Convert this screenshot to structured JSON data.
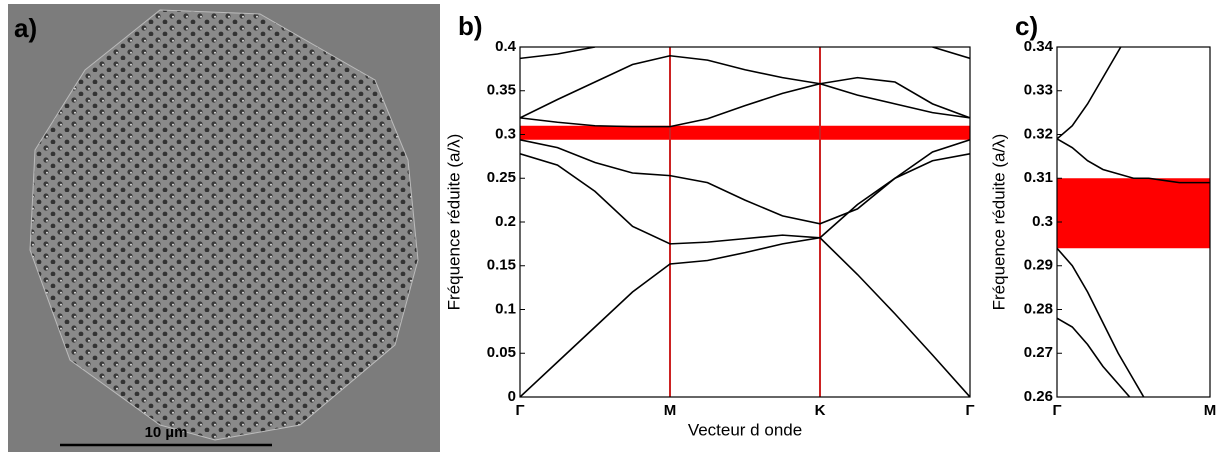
{
  "image": {
    "label": "a)",
    "scale_bar": "10 µm"
  },
  "chart_data": [
    {
      "type": "line",
      "panel_label": "b)",
      "xlabel": "Vecteur d onde",
      "ylabel": "Fréquence réduite (a/λ)",
      "xlim": [
        0,
        3
      ],
      "ylim": [
        0,
        0.4
      ],
      "xticks": [
        {
          "value": 0,
          "label": "Γ"
        },
        {
          "value": 1,
          "label": "M"
        },
        {
          "value": 2,
          "label": "K"
        },
        {
          "value": 3,
          "label": "Γ"
        }
      ],
      "yticks": [
        0,
        0.05,
        0.1,
        0.15,
        0.2,
        0.25,
        0.3,
        0.35,
        0.4
      ],
      "tick_line_color": "#cc2222",
      "gap": [
        0.294,
        0.31
      ],
      "gap_color": "#ff0000",
      "x": [
        0,
        0.25,
        0.5,
        0.75,
        1,
        1.25,
        1.5,
        1.75,
        2,
        2.25,
        2.5,
        2.75,
        3
      ],
      "series": [
        {
          "color": "#000000",
          "values": [
            0,
            0.04,
            0.08,
            0.12,
            0.152,
            0.156,
            0.165,
            0.175,
            0.182,
            0.14,
            0.095,
            0.048,
            0
          ]
        },
        {
          "color": "#000000",
          "values": [
            0.278,
            0.265,
            0.235,
            0.195,
            0.175,
            0.177,
            0.181,
            0.185,
            0.182,
            0.22,
            0.25,
            0.27,
            0.278
          ]
        },
        {
          "color": "#000000",
          "values": [
            0.294,
            0.285,
            0.268,
            0.256,
            0.253,
            0.245,
            0.225,
            0.207,
            0.198,
            0.215,
            0.25,
            0.28,
            0.294
          ]
        },
        {
          "color": "#000000",
          "values": [
            0.319,
            0.314,
            0.31,
            0.309,
            0.309,
            0.318,
            0.333,
            0.347,
            0.358,
            0.345,
            0.335,
            0.325,
            0.319
          ]
        },
        {
          "color": "#000000",
          "values": [
            0.319,
            0.34,
            0.36,
            0.38,
            0.39,
            0.385,
            0.374,
            0.365,
            0.358,
            0.365,
            0.36,
            0.335,
            0.319
          ]
        },
        {
          "color": "#000000",
          "values": [
            0.387,
            0.392,
            0.4,
            null,
            null,
            null,
            null,
            null,
            null,
            null,
            null,
            0.4,
            0.387
          ]
        }
      ]
    },
    {
      "type": "line",
      "panel_label": "c)",
      "ylabel": "Fréquence réduite (a/λ)",
      "xlim": [
        0,
        1
      ],
      "ylim": [
        0.26,
        0.34
      ],
      "xticks": [
        {
          "value": 0,
          "label": "Γ"
        },
        {
          "value": 1,
          "label": "M"
        }
      ],
      "yticks": [
        0.26,
        0.27,
        0.28,
        0.29,
        0.3,
        0.31,
        0.32,
        0.33,
        0.34
      ],
      "gap": [
        0.294,
        0.31
      ],
      "gap_color": "#ff0000",
      "x": [
        0,
        0.1,
        0.2,
        0.3,
        0.4,
        0.5,
        0.6,
        0.7,
        0.8,
        0.9,
        1
      ],
      "series": [
        {
          "color": "#000000",
          "values": [
            0.278,
            0.276,
            0.272,
            0.267,
            0.263,
            0.259,
            null,
            null,
            null,
            null,
            null
          ]
        },
        {
          "color": "#000000",
          "values": [
            0.294,
            0.29,
            0.284,
            0.277,
            0.27,
            0.264,
            0.258,
            null,
            null,
            null,
            null
          ]
        },
        {
          "color": "#000000",
          "values": [
            0.319,
            0.317,
            0.314,
            0.312,
            0.311,
            0.31,
            0.31,
            0.3095,
            0.309,
            0.309,
            0.309
          ]
        },
        {
          "color": "#000000",
          "values": [
            0.319,
            0.322,
            0.327,
            0.333,
            0.339,
            0.345,
            null,
            null,
            null,
            null,
            null
          ]
        }
      ]
    }
  ]
}
